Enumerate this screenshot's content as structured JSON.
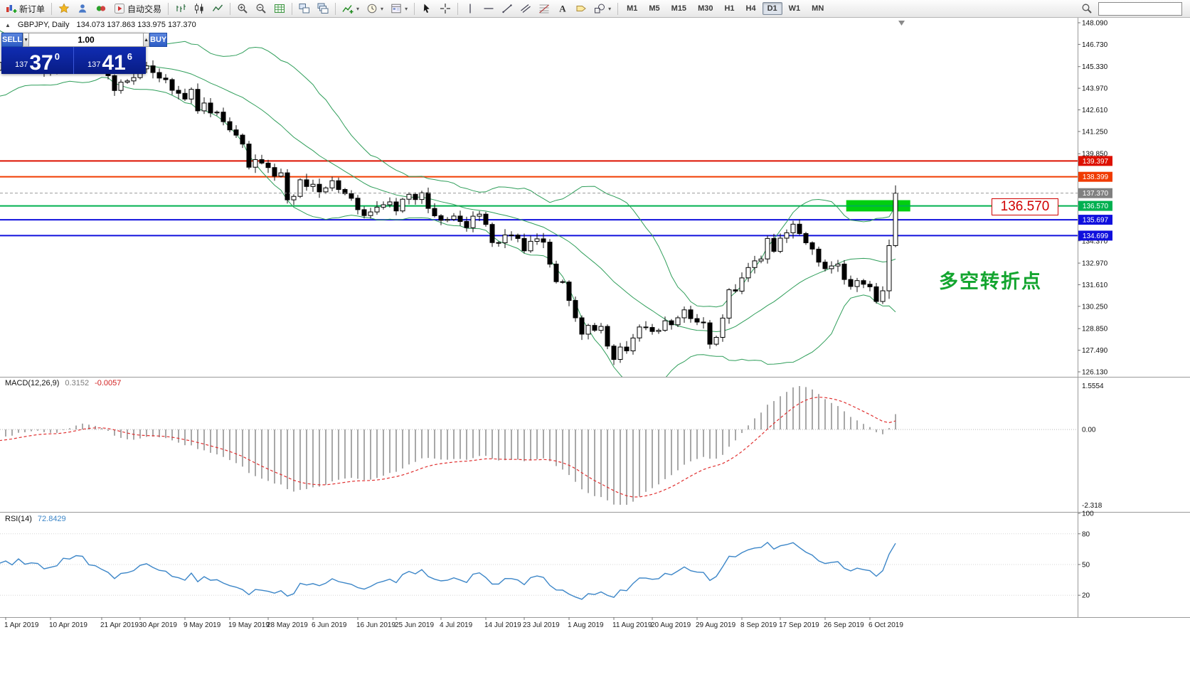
{
  "toolbar": {
    "groups": [
      [
        {
          "name": "new-order-button",
          "icon": "new-order",
          "label": "新订单"
        }
      ],
      [
        {
          "name": "metaeditor-button",
          "icon": "star"
        },
        {
          "name": "market-watch-button",
          "icon": "person"
        },
        {
          "name": "data-window-button",
          "icon": "badge"
        },
        {
          "name": "autotrading-button",
          "icon": "autoplay",
          "label": "自动交易"
        }
      ],
      [
        {
          "name": "bar-chart-mode-button",
          "icon": "bars"
        },
        {
          "name": "candlestick-mode-button",
          "icon": "candles"
        },
        {
          "name": "line-chart-mode-button",
          "icon": "linechart"
        }
      ],
      [
        {
          "name": "zoom-in-button",
          "icon": "zoomin"
        },
        {
          "name": "zoom-out-button",
          "icon": "zoomout"
        },
        {
          "name": "chart-grid-button",
          "icon": "grid"
        }
      ],
      [
        {
          "name": "tile-windows-button",
          "icon": "tile"
        },
        {
          "name": "cascade-windows-button",
          "icon": "cascade"
        }
      ],
      [
        {
          "name": "indicators-button",
          "icon": "indicator",
          "caret": true
        },
        {
          "name": "periods-button",
          "icon": "clock",
          "caret": true
        },
        {
          "name": "templates-button",
          "icon": "template",
          "caret": true
        }
      ],
      [
        {
          "name": "cursor-button",
          "icon": "cursor"
        },
        {
          "name": "crosshair-button",
          "icon": "crosshair"
        }
      ],
      [
        {
          "name": "vertical-line-button",
          "icon": "vline"
        },
        {
          "name": "horizontal-line-button",
          "icon": "hline"
        },
        {
          "name": "trendline-button",
          "icon": "trendline"
        },
        {
          "name": "channel-button",
          "icon": "channel"
        },
        {
          "name": "fibonacci-button",
          "icon": "fib"
        },
        {
          "name": "text-button",
          "icon": "textA"
        },
        {
          "name": "label-button",
          "icon": "labeltag"
        },
        {
          "name": "shapes-button",
          "icon": "shapes",
          "caret": true
        }
      ]
    ],
    "timeframes": [
      "M1",
      "M5",
      "M15",
      "M30",
      "H1",
      "H4",
      "D1",
      "W1",
      "MN"
    ],
    "active_timeframe": "D1",
    "search_placeholder": ""
  },
  "symbol_header": {
    "marker": "▲",
    "title": "GBPJPY, Daily",
    "ohlc": "134.073 137.863 133.975 137.370"
  },
  "trade_panel": {
    "sell_label": "SELL",
    "buy_label": "BUY",
    "volume": "1.00",
    "vol_down_glyph": "▼",
    "vol_up_glyph": "▲",
    "sell_price": {
      "prefix": "137",
      "big": "37",
      "sup": "0"
    },
    "buy_price": {
      "prefix": "137",
      "big": "41",
      "sup": "6"
    }
  },
  "macd_panel": {
    "title": "MACD(12,26,9)",
    "main_value": "0.3152",
    "signal_value": "-0.0057",
    "axis_max": "1.5554",
    "axis_zero": "0.00",
    "axis_min": "-2.318"
  },
  "rsi_panel": {
    "title": "RSI(14)",
    "value": "72.8429",
    "levels": [
      80,
      50,
      20
    ],
    "axis_labels": [
      "100",
      "80",
      "50",
      "20"
    ]
  },
  "annotations": {
    "price_label": "136.570",
    "turning_point_text": "多空转折点"
  },
  "chart_data": {
    "type": "candlestick",
    "symbol": "GBPJPY",
    "timeframe": "Daily",
    "last_ohlc": {
      "open": 134.073,
      "high": 137.863,
      "low": 133.975,
      "close": 137.37
    },
    "price_range": [
      126.13,
      148.09
    ],
    "price_axis": [
      148.09,
      146.73,
      145.33,
      143.97,
      142.61,
      141.25,
      139.85,
      134.37,
      132.97,
      131.61,
      130.25,
      128.85,
      127.49,
      126.13
    ],
    "current_price": 137.37,
    "current_price_tag_color": "#808080",
    "levels": [
      {
        "price": 139.397,
        "color": "#dd1100"
      },
      {
        "price": 138.399,
        "color": "#f03b00"
      },
      {
        "price": 136.57,
        "color": "#00b050"
      },
      {
        "price": 135.697,
        "color": "#1010dd"
      },
      {
        "price": 134.699,
        "color": "#1010dd"
      }
    ],
    "highlight_rect": {
      "day_from": 131.3,
      "day_to": 141.3,
      "price_top": 136.93,
      "price_bottom": 136.22,
      "color": "#00cf10"
    },
    "indicators": {
      "bollinger": {
        "period": 20,
        "deviation": 2,
        "color": "#2f9e5a"
      },
      "macd": {
        "fast": 12,
        "slow": 26,
        "signal": 9
      },
      "rsi": {
        "period": 14,
        "color": "#3c86c8"
      }
    },
    "first_open": 146.3,
    "preroll_closes": [
      146.1,
      145.8,
      146.4,
      147.0,
      146.6,
      146.9,
      147.3,
      147.9,
      147.5,
      146.8,
      146.2,
      145.3,
      144.9,
      145.4,
      144.8,
      144.2,
      144.6,
      145.1,
      145.6,
      145.2,
      144.7,
      144.3,
      144.9,
      145.4,
      145.1,
      145.6
    ],
    "closes": [
      145.93,
      145.45,
      146.26,
      145.58,
      145.77,
      145.7,
      145.0,
      145.18,
      145.35,
      146.31,
      146.22,
      146.69,
      146.63,
      145.71,
      145.6,
      145.16,
      144.76,
      143.83,
      144.35,
      144.43,
      144.64,
      145.19,
      145.38,
      144.96,
      144.61,
      144.51,
      143.84,
      143.65,
      143.29,
      143.9,
      142.55,
      143.04,
      142.42,
      142.47,
      141.87,
      141.35,
      141.02,
      140.46,
      139.0,
      139.48,
      139.26,
      138.98,
      138.44,
      138.65,
      136.95,
      137.17,
      138.21,
      137.79,
      137.93,
      137.45,
      137.7,
      138.15,
      137.6,
      137.34,
      137.05,
      136.33,
      135.96,
      136.19,
      136.49,
      136.64,
      136.82,
      136.25,
      136.99,
      137.3,
      136.97,
      137.39,
      136.41,
      135.95,
      135.66,
      135.72,
      135.93,
      135.59,
      135.2,
      135.92,
      136.05,
      135.4,
      134.26,
      134.25,
      134.74,
      134.73,
      134.52,
      133.74,
      134.34,
      134.5,
      134.29,
      132.91,
      131.8,
      131.78,
      130.62,
      129.53,
      128.5,
      129.05,
      128.74,
      128.99,
      127.75,
      126.91,
      127.69,
      127.45,
      128.26,
      128.95,
      128.92,
      128.67,
      128.74,
      129.34,
      129.09,
      129.53,
      130.03,
      129.48,
      129.26,
      129.21,
      127.87,
      128.3,
      129.51,
      131.29,
      131.21,
      132.04,
      132.69,
      133.11,
      133.23,
      134.52,
      133.71,
      134.54,
      134.88,
      135.42,
      134.83,
      134.25,
      133.85,
      133.03,
      132.62,
      132.79,
      132.91,
      131.94,
      131.5,
      131.87,
      131.64,
      131.48,
      130.56,
      131.23,
      134.07,
      137.37
    ],
    "overrides": {
      "138": [
        131.23,
        134.45,
        130.72,
        134.07
      ],
      "139": [
        134.073,
        137.863,
        133.975,
        137.37
      ]
    },
    "date_labels": [
      [
        "1 Apr 2019",
        0
      ],
      [
        "10 Apr 2019",
        7
      ],
      [
        "21 Apr 2019",
        15
      ],
      [
        "30 Apr 2019",
        21
      ],
      [
        "9 May 2019",
        28
      ],
      [
        "19 May 2019",
        35
      ],
      [
        "28 May 2019",
        41
      ],
      [
        "6 Jun 2019",
        48
      ],
      [
        "16 Jun 2019",
        55
      ],
      [
        "25 Jun 2019",
        61
      ],
      [
        "4 Jul 2019",
        68
      ],
      [
        "14 Jul 2019",
        75
      ],
      [
        "23 Jul 2019",
        81
      ],
      [
        "1 Aug 2019",
        88
      ],
      [
        "11 Aug 2019",
        95
      ],
      [
        "20 Aug 2019",
        101
      ],
      [
        "29 Aug 2019",
        108
      ],
      [
        "8 Sep 2019",
        115
      ],
      [
        "17 Sep 2019",
        121
      ],
      [
        "26 Sep 2019",
        128
      ],
      [
        "6 Oct 2019",
        135
      ]
    ]
  }
}
